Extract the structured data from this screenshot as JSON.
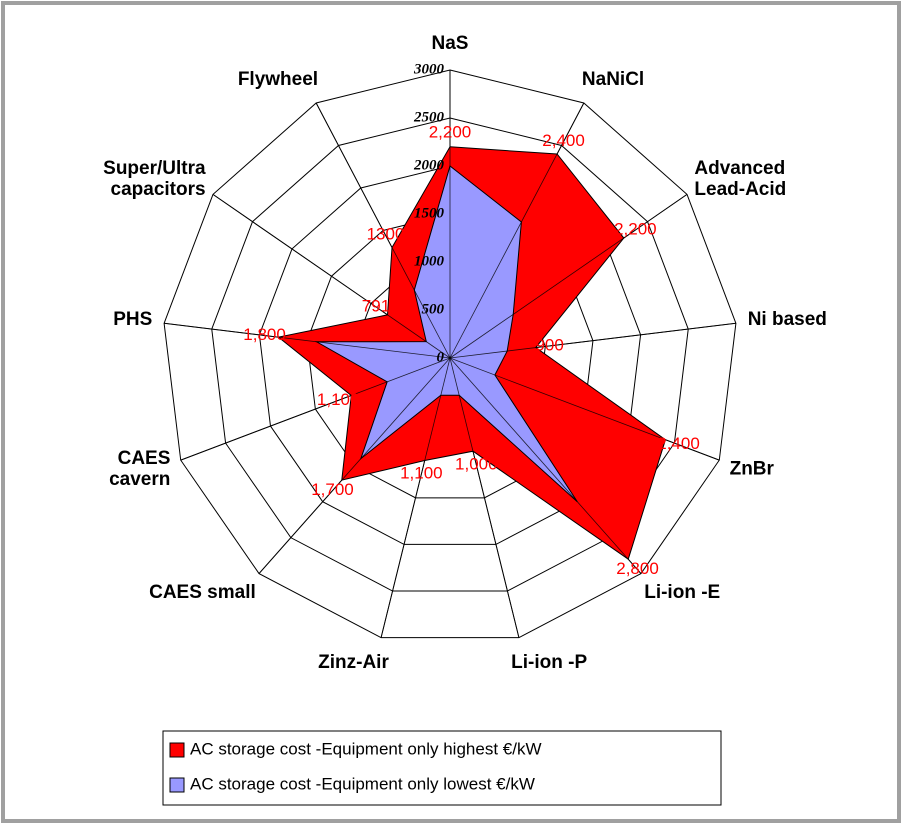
{
  "chart_data": {
    "type": "radar",
    "categories": [
      "NaS",
      "NaNiCl",
      "Advanced\nLead-Acid",
      "Ni based",
      "ZnBr",
      "Li-ion -E",
      "Li-ion -P",
      "Zinz-Air",
      "CAES small",
      "CAES\ncavern",
      "PHS",
      "Super/Ultra\ncapacitors",
      "Flywheel"
    ],
    "series": [
      {
        "name": "AC storage cost -Equipment only highest €/kW",
        "color": "#ff0000",
        "values": [
          2200,
          2400,
          2200,
          900,
          2400,
          2800,
          1000,
          1100,
          1700,
          1100,
          1800,
          791,
          1300
        ],
        "value_labels": [
          "2,200",
          "2,400",
          "2,200",
          "900",
          "2,400",
          "2,800",
          "1,000",
          "1,100",
          "1,700",
          "1,100",
          "1,800",
          "791",
          "1300"
        ]
      },
      {
        "name": "AC storage cost -Equipment only lowest €/kW",
        "color": "#9999ff",
        "values": [
          2000,
          1600,
          800,
          600,
          500,
          2000,
          400,
          400,
          1400,
          700,
          1400,
          300,
          800
        ]
      }
    ],
    "ylim": [
      0,
      3000
    ],
    "yticks": [
      0,
      500,
      1000,
      1500,
      2000,
      2500,
      3000
    ],
    "grid": true,
    "legend": "bottom"
  }
}
